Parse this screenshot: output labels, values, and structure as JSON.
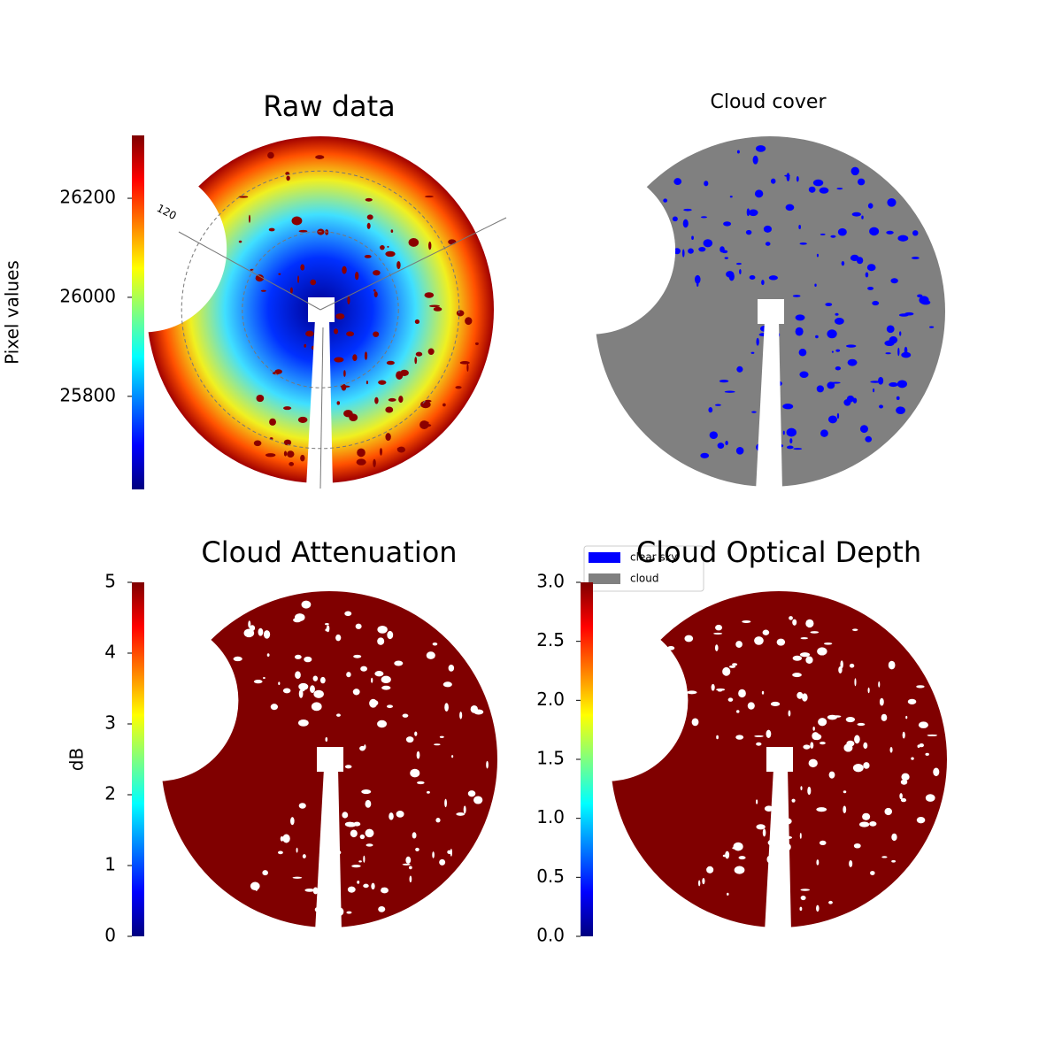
{
  "chart_data": [
    {
      "type": "image",
      "title": "Raw data",
      "ylabel": "Pixel values",
      "colormap": "jet",
      "ylim": [
        25612,
        26327
      ],
      "yticks": [
        25800,
        26000,
        26200
      ],
      "polar_labels": [
        "120"
      ]
    },
    {
      "type": "image",
      "title": "Cloud cover",
      "color": "#808080",
      "legend": [
        {
          "name": "clear sky",
          "color": "#0000ff"
        },
        {
          "name": "cloud",
          "color": "#808080"
        }
      ]
    },
    {
      "type": "image",
      "title": "Cloud Attenuation",
      "ylabel": "dB",
      "colormap": "jet",
      "color": "#800000",
      "ylim": [
        0,
        5
      ],
      "yticks": [
        0,
        1,
        2,
        3,
        4,
        5
      ]
    },
    {
      "type": "image",
      "title": "Cloud Optical Depth",
      "colormap": "jet",
      "color": "#800000",
      "ylim": [
        0,
        3
      ],
      "yticks": [
        {
          "value": 0,
          "label": "0.0"
        },
        0.5,
        {
          "value": 1,
          "label": "1.0"
        },
        1.5,
        {
          "value": 2,
          "label": "2.0"
        },
        2.5,
        {
          "value": 3,
          "label": "3.0"
        }
      ]
    }
  ]
}
